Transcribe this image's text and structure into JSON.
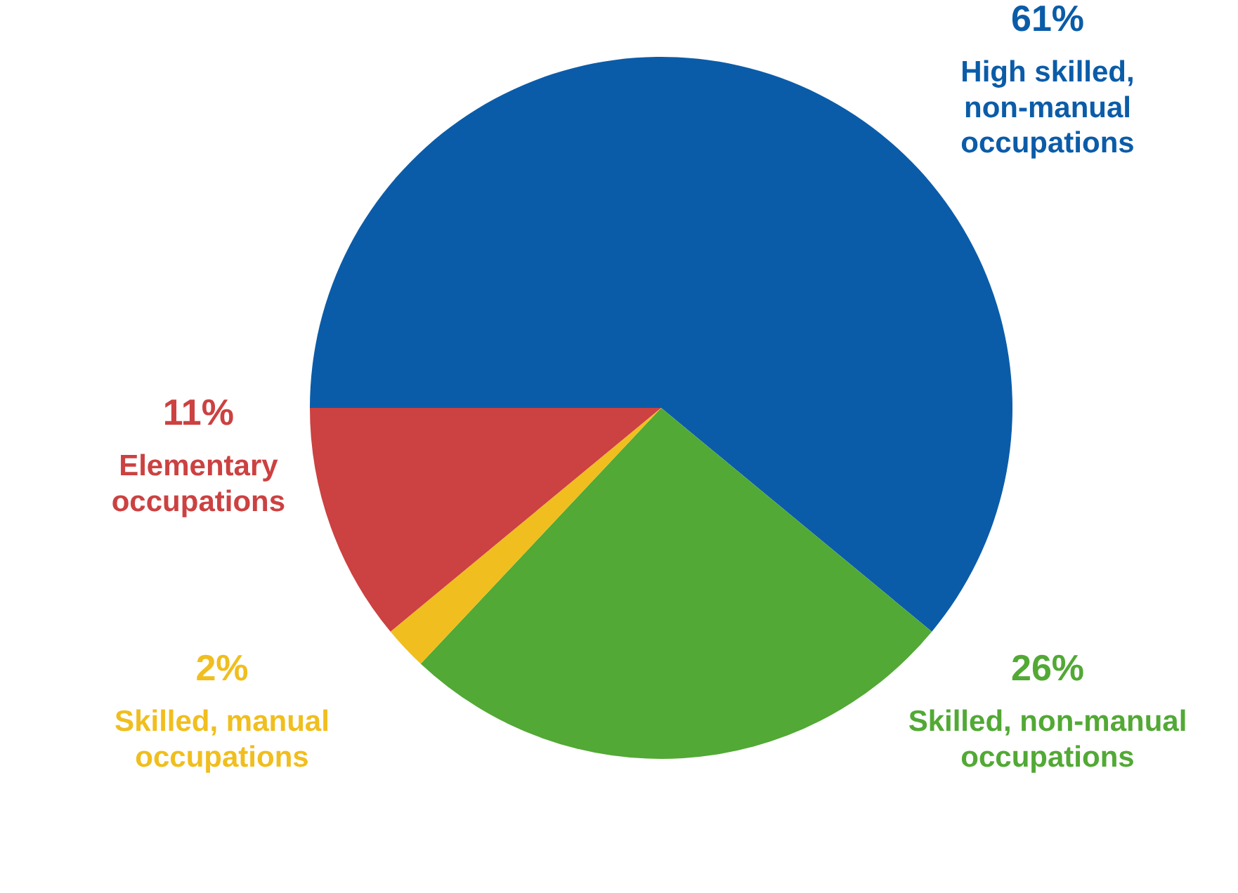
{
  "chart_data": {
    "type": "pie",
    "categories": [
      "High skilled,\nnon-manual\noccupations",
      "Skilled, non-manual\noccupations",
      "Skilled, manual\noccupations",
      "Elementary\noccupations"
    ],
    "values": [
      61,
      26,
      2,
      11
    ],
    "colors": [
      "#0b5ca8",
      "#52a935",
      "#f0be1e",
      "#cc4141"
    ],
    "value_labels": [
      "61%",
      "26%",
      "2%",
      "11%"
    ]
  }
}
